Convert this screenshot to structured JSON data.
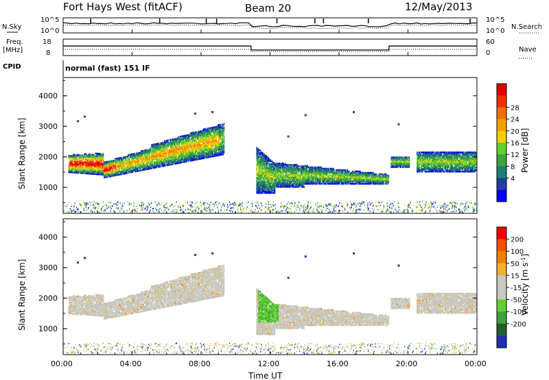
{
  "header": {
    "title": "Fort Hays West (fitACF)",
    "beam": "Beam 20",
    "date": "12/May/2013"
  },
  "colors": {
    "power_scale": [
      "#0000ff",
      "#2040a0",
      "#208070",
      "#40a040",
      "#60d030",
      "#f0d000",
      "#f0a000",
      "#f07000",
      "#f03000",
      "#e00000"
    ],
    "velocity_scale": [
      "#2030b0",
      "#206030",
      "#40a040",
      "#60d030",
      "#c8c8c0",
      "#c8c8c0",
      "#f0b030",
      "#f08000",
      "#f05000",
      "#f00000"
    ],
    "ground_scatter": "#c8c8c0"
  },
  "chart_data": [
    {
      "type": "line",
      "panel": "noise",
      "series": [
        {
          "name": "N.Sky",
          "style": "solid"
        },
        {
          "name": "N.Search",
          "style": "dotted"
        }
      ],
      "ytick_labels_left": [
        "10^5",
        "10^0"
      ],
      "ytick_labels_right": [
        "10^5",
        "10^0"
      ]
    },
    {
      "type": "line",
      "panel": "frequency",
      "left_label": "Freq. [MHz]",
      "right_legend": "Nave",
      "left_ticks": [
        "18",
        "8"
      ],
      "right_ticks": [
        "60",
        "0"
      ],
      "freq_segments": [
        {
          "x": [
            0,
            10.9
          ],
          "y": 14.2
        },
        {
          "x": [
            10.9,
            18.9
          ],
          "y": 10.6
        },
        {
          "x": [
            18.9,
            24
          ],
          "y": 14.2
        }
      ]
    },
    {
      "type": "heatmap",
      "panel": "power",
      "cpid_label": "CPID",
      "cpid_text": "normal (fast) 151 IF",
      "ylabel": "Slant Range [km]",
      "yticks": [
        1000,
        2000,
        3000,
        4000
      ],
      "ylim": [
        150,
        4600
      ],
      "colorbar_label": "Power [dB]",
      "colorbar_ticks": [
        "4",
        "8",
        "12",
        "16",
        "20",
        "24",
        "28"
      ]
    },
    {
      "type": "heatmap",
      "panel": "velocity",
      "ylabel": "Slant Range [km]",
      "yticks": [
        1000,
        2000,
        3000,
        4000
      ],
      "ylim": [
        150,
        4600
      ],
      "colorbar_label": "Velocity [m s^-1]",
      "colorbar_ticks": [
        "200",
        "100",
        "50",
        "15",
        "-15",
        "-50",
        "-100",
        "-200"
      ],
      "xlabel": "Time UT",
      "xtick_labels": [
        "00:00",
        "04:00",
        "08:00",
        "12:00",
        "16:00",
        "20:00",
        "00:00"
      ],
      "xlim": [
        0,
        24
      ]
    }
  ]
}
